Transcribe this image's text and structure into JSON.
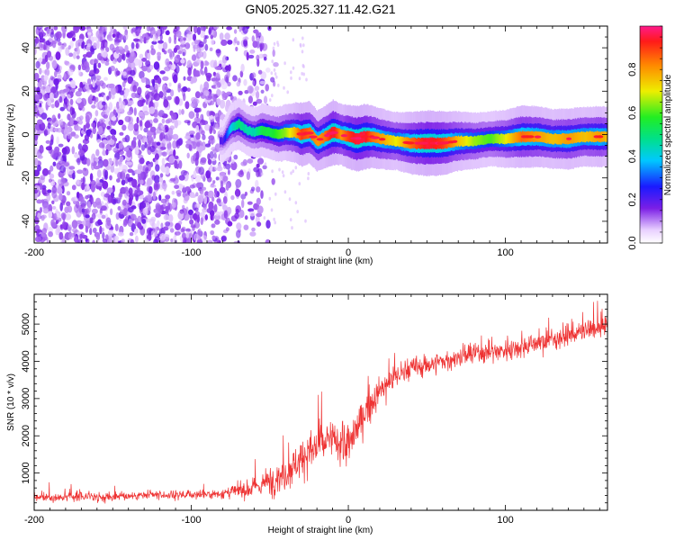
{
  "title": "GN05.2025.327.11.42.G21",
  "chart_data": [
    {
      "type": "heatmap",
      "title": "GN05.2025.327.11.42.G21",
      "xlabel": "Height of straight line (km)",
      "ylabel": "Frequency (Hz)",
      "xlim": [
        -200,
        165
      ],
      "ylim": [
        -50,
        50
      ],
      "x_ticks": [
        -200,
        -100,
        0,
        100
      ],
      "x_tick_labels": [
        "-200",
        "-100",
        "0",
        "100"
      ],
      "y_ticks": [
        -40,
        -20,
        0,
        20,
        40
      ],
      "y_tick_labels": [
        "-40",
        "-20",
        "0",
        "20",
        "40"
      ],
      "colorbar": {
        "label": "Normalized spectral amplitude",
        "range": [
          0,
          1
        ],
        "ticks": [
          0.0,
          0.2,
          0.4,
          0.6,
          0.8
        ],
        "tick_labels": [
          "0.0",
          "0.2",
          "0.4",
          "0.6",
          "0.8"
        ]
      },
      "noise_region_x": [
        -200,
        -55
      ],
      "ridge": {
        "x": [
          -80,
          -75,
          -70,
          -65,
          -60,
          -55,
          -50,
          -45,
          -40,
          -35,
          -30,
          -25,
          -20,
          -15,
          -10,
          -5,
          0,
          5,
          10,
          15,
          20,
          30,
          40,
          50,
          60,
          70,
          80,
          90,
          100,
          110,
          120,
          130,
          140,
          150,
          160,
          165
        ],
        "freq": [
          -3,
          3,
          5,
          2,
          1,
          2,
          1,
          0,
          1,
          1,
          0,
          1,
          -3,
          -1,
          1,
          0,
          -1,
          -2,
          -1,
          -1,
          -2,
          -3,
          -4,
          -4,
          -4,
          -3,
          -3,
          -2,
          -2,
          -1,
          -1,
          -2,
          -2,
          -1,
          -1,
          -1
        ],
        "amp": [
          0.2,
          0.4,
          0.5,
          0.45,
          0.45,
          0.55,
          0.55,
          0.6,
          0.65,
          0.75,
          0.9,
          0.85,
          0.8,
          0.85,
          0.95,
          0.8,
          0.9,
          0.95,
          0.95,
          0.85,
          0.8,
          0.7,
          0.85,
          0.95,
          0.9,
          0.75,
          0.65,
          0.6,
          0.7,
          0.85,
          0.8,
          0.75,
          0.8,
          0.75,
          0.8,
          0.75
        ]
      }
    },
    {
      "type": "line",
      "xlabel": "Height of straight line (km)",
      "ylabel": "SNR (10 * v/v)",
      "xlim": [
        -200,
        165
      ],
      "ylim": [
        0,
        5800
      ],
      "x_ticks": [
        -200,
        -100,
        0,
        100
      ],
      "x_tick_labels": [
        "-200",
        "-100",
        "0",
        "100"
      ],
      "y_ticks": [
        1000,
        2000,
        3000,
        4000,
        5000
      ],
      "y_tick_labels": [
        "1000",
        "2000",
        "3000",
        "4000",
        "5000"
      ],
      "color": "#ee3333",
      "trend": {
        "x": [
          -200,
          -150,
          -100,
          -80,
          -60,
          -40,
          -30,
          -20,
          -10,
          0,
          10,
          20,
          30,
          40,
          60,
          80,
          100,
          120,
          140,
          160,
          165
        ],
        "y": [
          350,
          380,
          420,
          450,
          600,
          1000,
          1400,
          1700,
          1900,
          1700,
          2600,
          3200,
          3600,
          3800,
          4000,
          4200,
          4300,
          4500,
          4700,
          4900,
          5050
        ]
      },
      "noise_amplitude": {
        "x": [
          -200,
          -80,
          -60,
          -40,
          -20,
          0,
          20,
          60,
          165
        ],
        "y": [
          150,
          160,
          350,
          600,
          700,
          700,
          450,
          350,
          350
        ]
      }
    }
  ]
}
